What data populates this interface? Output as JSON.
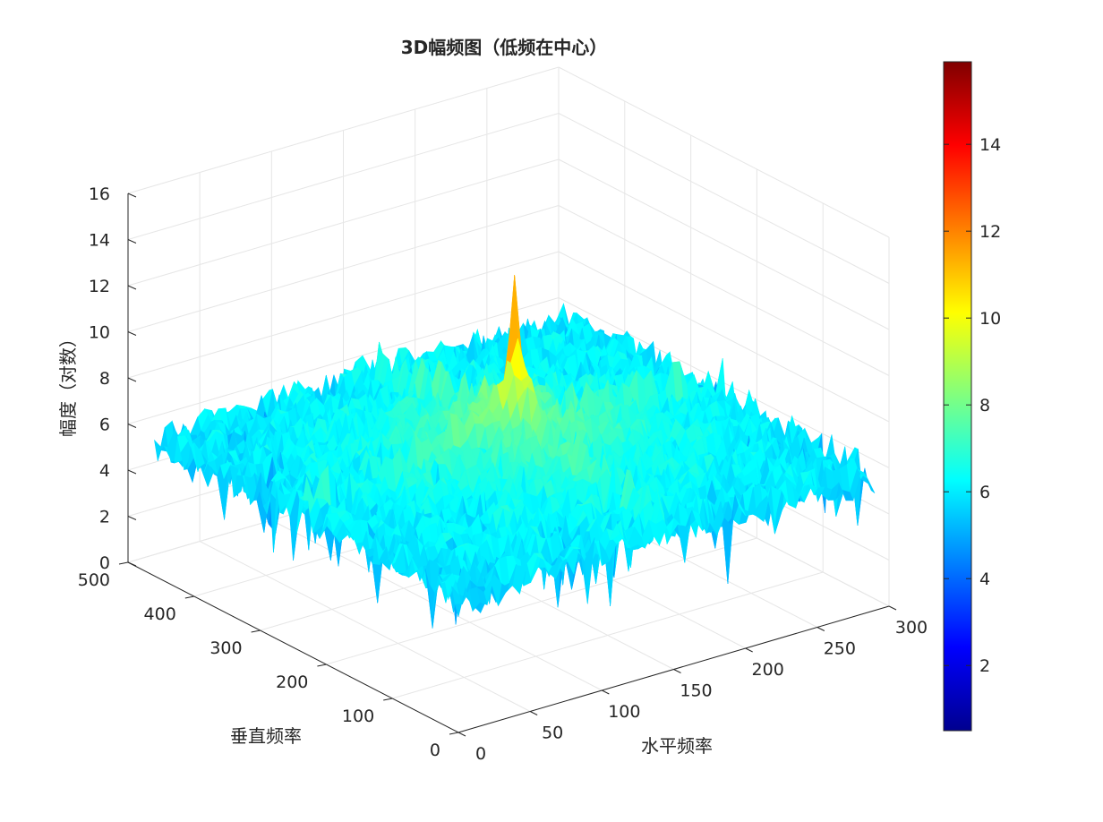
{
  "chart_data": {
    "type": "surface3d",
    "title": "3D幅频图（低频在中心）",
    "xlabel": "水平频率",
    "ylabel": "垂直频率",
    "zlabel": "幅度（对数）",
    "x_range": [
      0,
      300
    ],
    "y_range": [
      0,
      500
    ],
    "z_range": [
      0,
      16
    ],
    "x_ticks": [
      0,
      50,
      100,
      150,
      200,
      250,
      300
    ],
    "y_ticks": [
      0,
      100,
      200,
      300,
      400,
      500
    ],
    "z_ticks": [
      0,
      2,
      4,
      6,
      8,
      10,
      12,
      14,
      16
    ],
    "colormap": "jet",
    "colorbar_range": [
      0.5,
      15.9
    ],
    "colorbar_ticks": [
      2,
      4,
      6,
      8,
      10,
      12,
      14
    ],
    "grid": true,
    "surface": {
      "grid_size_x": 290,
      "grid_size_y": 460,
      "center": [
        145,
        230
      ],
      "peak_value": 13.8,
      "background_level": 5.7,
      "axis_ridge_level": 8.2,
      "min_value": 1.0
    }
  }
}
